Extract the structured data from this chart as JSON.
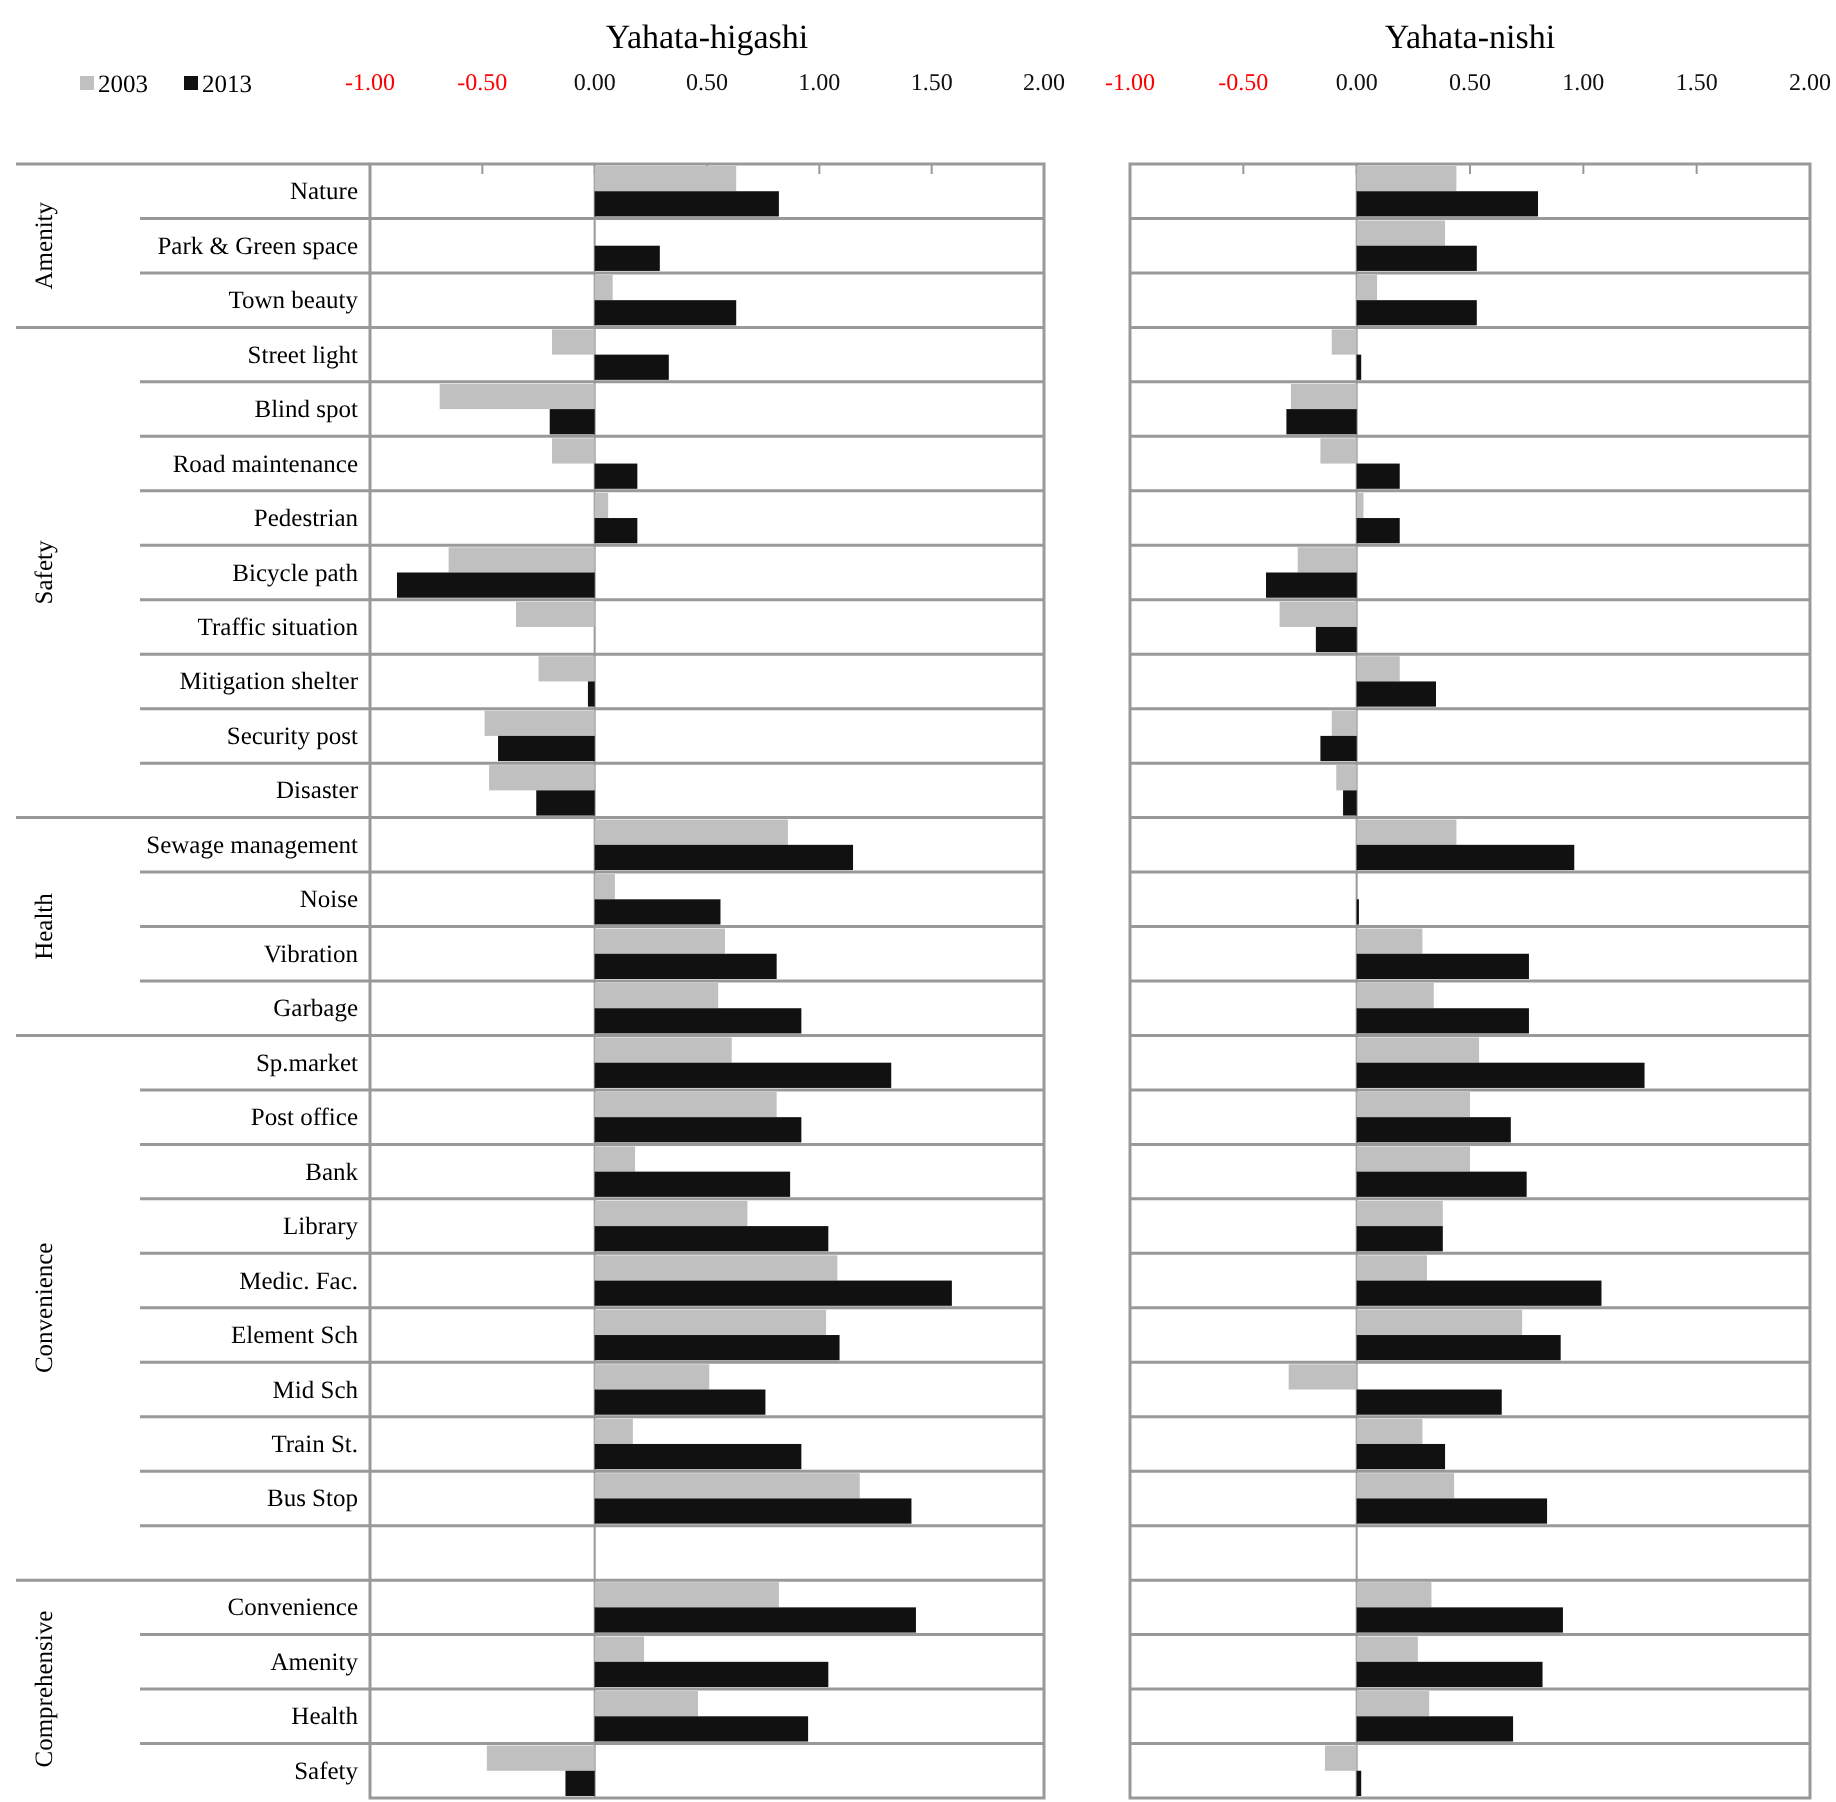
{
  "chart_data": [
    {
      "type": "bar",
      "orientation": "horizontal",
      "title": "Yahata-higashi",
      "legend": "top left",
      "grid": true,
      "categories": [
        "Nature",
        "Park & Green space",
        "Town beauty",
        "Street light",
        "Blind spot",
        "Road maintenance",
        "Pedestrian",
        "Bicycle path",
        "Traffic situation",
        "Mitigation shelter",
        "Security post",
        "Disaster",
        "Sewage management",
        "Noise",
        "Vibration",
        "Garbage",
        "Sp.market",
        "Post office",
        "Bank",
        "Library",
        "Medic. Fac.",
        "Element Sch",
        "Mid Sch",
        "Train St.",
        "Bus Stop",
        null,
        "Convenience",
        "Amenity",
        "Health",
        "Safety"
      ],
      "series": [
        {
          "name": "2003",
          "color": "#c0c0c0",
          "values": [
            0.63,
            0,
            0.08,
            -0.19,
            -0.69,
            -0.19,
            0.06,
            -0.65,
            -0.35,
            -0.25,
            -0.49,
            -0.47,
            0.86,
            0.09,
            0.58,
            0.55,
            0.61,
            0.81,
            0.18,
            0.68,
            1.08,
            1.03,
            0.51,
            0.17,
            1.18,
            null,
            0.82,
            0.22,
            0.46,
            -0.48
          ]
        },
        {
          "name": "2013",
          "color": "#111111",
          "values": [
            0.82,
            0.29,
            0.63,
            0.33,
            -0.2,
            0.19,
            0.19,
            -0.88,
            0,
            -0.03,
            -0.43,
            -0.26,
            1.15,
            0.56,
            0.81,
            0.92,
            1.32,
            0.92,
            0.87,
            1.04,
            1.59,
            1.09,
            0.76,
            0.92,
            1.41,
            null,
            1.43,
            1.04,
            0.95,
            -0.13
          ]
        }
      ],
      "xlim": [
        -1,
        2
      ],
      "xticks": [
        {
          "value": -1,
          "label": "-1.00"
        },
        {
          "value": -0.5,
          "label": "-0.50"
        },
        {
          "value": 0,
          "label": "0.00"
        },
        {
          "value": 0.5,
          "label": "0.50"
        },
        {
          "value": 1,
          "label": "1.00"
        },
        {
          "value": 1.5,
          "label": "1.50"
        },
        {
          "value": 2,
          "label": "2.00"
        }
      ],
      "annotations": [
        "Amenity",
        "Safety",
        "Health",
        "Convenience",
        "Comprehensive"
      ]
    },
    {
      "type": "bar",
      "orientation": "horizontal",
      "title": "Yahata-nishi",
      "tick_labels": "x",
      "grid": true,
      "categories": [
        null,
        null,
        null,
        null,
        null,
        null,
        null,
        null,
        null,
        null,
        null,
        null,
        null,
        null,
        null,
        null,
        null,
        null,
        null,
        null,
        null,
        null,
        null,
        null,
        null,
        null,
        null,
        null,
        null,
        null
      ],
      "series": [
        {
          "color": "#c0c0c0",
          "values": [
            0.44,
            0.39,
            0.09,
            -0.11,
            -0.29,
            -0.16,
            0.03,
            -0.26,
            -0.34,
            0.19,
            -0.11,
            -0.09,
            0.44,
            0,
            0.29,
            0.34,
            0.54,
            0.5,
            0.5,
            0.38,
            0.31,
            0.73,
            -0.3,
            0.29,
            0.43,
            null,
            0.33,
            0.27,
            0.32,
            -0.14
          ]
        },
        {
          "color": "#111111",
          "values": [
            0.8,
            0.53,
            0.53,
            0.02,
            -0.31,
            0.19,
            0.19,
            -0.4,
            -0.18,
            0.35,
            -0.16,
            -0.06,
            0.96,
            0.01,
            0.76,
            0.76,
            1.27,
            0.68,
            0.75,
            0.38,
            1.08,
            0.9,
            0.64,
            0.39,
            0.84,
            null,
            0.91,
            0.82,
            0.69,
            0.02
          ]
        }
      ],
      "xlim": [
        -1,
        2
      ],
      "xticks": [
        {
          "value": -1,
          "label": "-1.00"
        },
        {
          "value": -0.5,
          "label": "-0.50"
        },
        {
          "value": 0,
          "label": "0.00"
        },
        {
          "value": 0.5,
          "label": "0.50"
        },
        {
          "value": 1,
          "label": "1.00"
        },
        {
          "value": 1.5,
          "label": "1.50"
        },
        {
          "value": 2,
          "label": "2.00"
        }
      ]
    }
  ]
}
